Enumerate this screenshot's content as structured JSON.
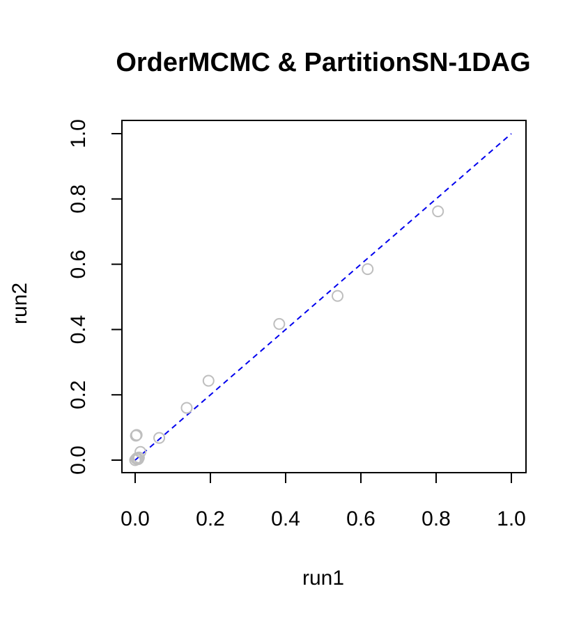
{
  "chart_data": {
    "type": "scatter",
    "title": "OrderMCMC & PartitionSN-1DAG",
    "xlabel": "run1",
    "ylabel": "run2",
    "xlim": [
      0,
      1
    ],
    "ylim": [
      0,
      1
    ],
    "x_ticks": [
      "0.0",
      "0.2",
      "0.4",
      "0.6",
      "0.8",
      "1.0"
    ],
    "y_ticks": [
      "0.0",
      "0.2",
      "0.4",
      "0.6",
      "0.8",
      "1.0"
    ],
    "grid": false,
    "legend": "none",
    "point_color": "#bebebe",
    "reference_line": {
      "from": [
        0,
        0
      ],
      "to": [
        1,
        1
      ],
      "color": "#0000ee",
      "style": "dashed"
    },
    "points": [
      {
        "x": 0.0,
        "y": 0.0
      },
      {
        "x": 0.003,
        "y": 0.004
      },
      {
        "x": 0.005,
        "y": 0.006
      },
      {
        "x": 0.008,
        "y": 0.003
      },
      {
        "x": 0.01,
        "y": 0.008
      },
      {
        "x": 0.002,
        "y": 0.075
      },
      {
        "x": 0.004,
        "y": 0.077
      },
      {
        "x": 0.014,
        "y": 0.025
      },
      {
        "x": 0.064,
        "y": 0.068
      },
      {
        "x": 0.137,
        "y": 0.16
      },
      {
        "x": 0.195,
        "y": 0.243
      },
      {
        "x": 0.383,
        "y": 0.417
      },
      {
        "x": 0.538,
        "y": 0.503
      },
      {
        "x": 0.618,
        "y": 0.585
      },
      {
        "x": 0.805,
        "y": 0.762
      }
    ]
  }
}
